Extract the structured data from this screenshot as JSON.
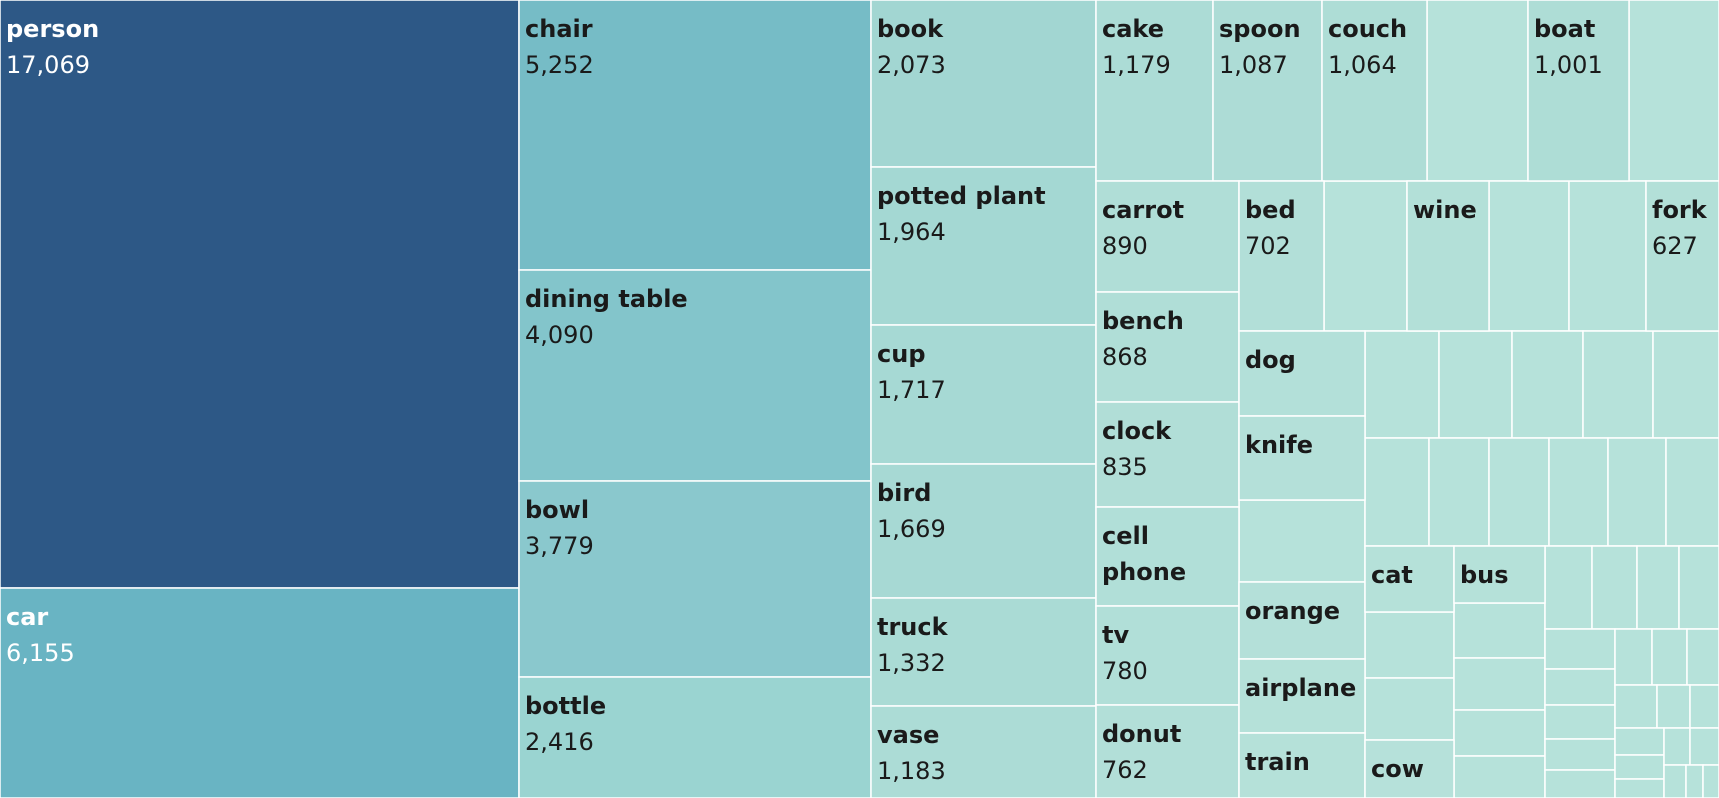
{
  "chart_data": {
    "type": "treemap",
    "items": [
      {
        "name": "person",
        "value": 17069,
        "color": "#2d5886",
        "text": "#ffffff"
      },
      {
        "name": "car",
        "value": 6155,
        "color": "#69b4c3",
        "text": "#ffffff"
      },
      {
        "name": "chair",
        "value": 5252,
        "color": "#76bcc6",
        "text": "#1a1a1a"
      },
      {
        "name": "dining table",
        "value": 4090,
        "color": "#83c5cb",
        "text": "#1a1a1a"
      },
      {
        "name": "bowl",
        "value": 3779,
        "color": "#8ac8cd",
        "text": "#1a1a1a"
      },
      {
        "name": "bottle",
        "value": 2416,
        "color": "#9ad4d1",
        "text": "#1a1a1a"
      },
      {
        "name": "book",
        "value": 2073,
        "color": "#a2d6d2",
        "text": "#1a1a1a"
      },
      {
        "name": "potted plant",
        "value": 1964,
        "color": "#a4d8d3",
        "text": "#1a1a1a"
      },
      {
        "name": "cup",
        "value": 1717,
        "color": "#a6d9d4",
        "text": "#1a1a1a"
      },
      {
        "name": "bird",
        "value": 1669,
        "color": "#a7d9d4",
        "text": "#1a1a1a"
      },
      {
        "name": "truck",
        "value": 1332,
        "color": "#aadbd5",
        "text": "#1a1a1a"
      },
      {
        "name": "vase",
        "value": 1183,
        "color": "#acdcd6",
        "text": "#1a1a1a"
      },
      {
        "name": "cake",
        "value": 1179,
        "color": "#acdcd6",
        "text": "#1a1a1a"
      },
      {
        "name": "spoon",
        "value": 1087,
        "color": "#addcd6",
        "text": "#1a1a1a"
      },
      {
        "name": "couch",
        "value": 1064,
        "color": "#aeddd6",
        "text": "#1a1a1a"
      },
      {
        "name": "boat",
        "value": 1001,
        "color": "#aeddd6",
        "text": "#1a1a1a"
      },
      {
        "name": "carrot",
        "value": 890,
        "color": "#b0ded7",
        "text": "#1a1a1a"
      },
      {
        "name": "bench",
        "value": 868,
        "color": "#b0ded7",
        "text": "#1a1a1a"
      },
      {
        "name": "clock",
        "value": 835,
        "color": "#b1ded7",
        "text": "#1a1a1a"
      },
      {
        "name": "cell phone",
        "value": null,
        "color": "#b1dfd8",
        "text": "#1a1a1a"
      },
      {
        "name": "tv",
        "value": 780,
        "color": "#b1dfd8",
        "text": "#1a1a1a"
      },
      {
        "name": "donut",
        "value": 762,
        "color": "#b2dfd8",
        "text": "#1a1a1a"
      },
      {
        "name": "bed",
        "value": 702,
        "color": "#b2dfd8",
        "text": "#1a1a1a"
      },
      {
        "name": "wine",
        "value": null,
        "color": "#b3e0d8",
        "text": "#1a1a1a"
      },
      {
        "name": "fork",
        "value": 627,
        "color": "#b3e0d8",
        "text": "#1a1a1a"
      },
      {
        "name": "dog",
        "value": null,
        "color": "#b3e0d9",
        "text": "#1a1a1a"
      },
      {
        "name": "knife",
        "value": null,
        "color": "#b4e0d9",
        "text": "#1a1a1a"
      },
      {
        "name": "orange",
        "value": null,
        "color": "#b4e0d9",
        "text": "#1a1a1a"
      },
      {
        "name": "airplane",
        "value": null,
        "color": "#b5e1d9",
        "text": "#1a1a1a"
      },
      {
        "name": "train",
        "value": null,
        "color": "#b5e1d9",
        "text": "#1a1a1a"
      },
      {
        "name": "cat",
        "value": null,
        "color": "#b5e1d9",
        "text": "#1a1a1a"
      },
      {
        "name": "bus",
        "value": null,
        "color": "#b5e1d9",
        "text": "#1a1a1a"
      },
      {
        "name": "cow",
        "value": null,
        "color": "#b6e1da",
        "text": "#1a1a1a"
      }
    ]
  }
}
